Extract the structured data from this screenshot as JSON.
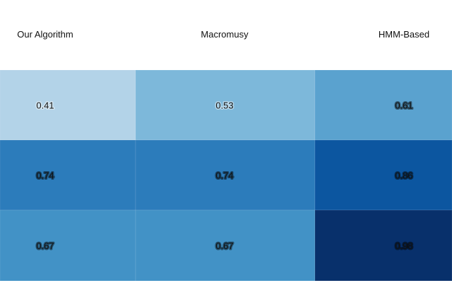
{
  "chart_data": {
    "type": "heatmap",
    "columns": [
      "Our Algorithm",
      "Macromusy",
      "HMM-Based"
    ],
    "rows": [
      {
        "values": [
          0.41,
          0.53,
          0.61
        ]
      },
      {
        "values": [
          0.74,
          0.74,
          0.86
        ]
      },
      {
        "values": [
          0.67,
          0.67,
          0.98
        ]
      }
    ],
    "value_format": "0.00",
    "colorscale": "Blues",
    "colors": {
      "low": "#9ac8e0",
      "high": "#08336d",
      "header_text": "#111111",
      "cell_text": "#111111"
    }
  }
}
